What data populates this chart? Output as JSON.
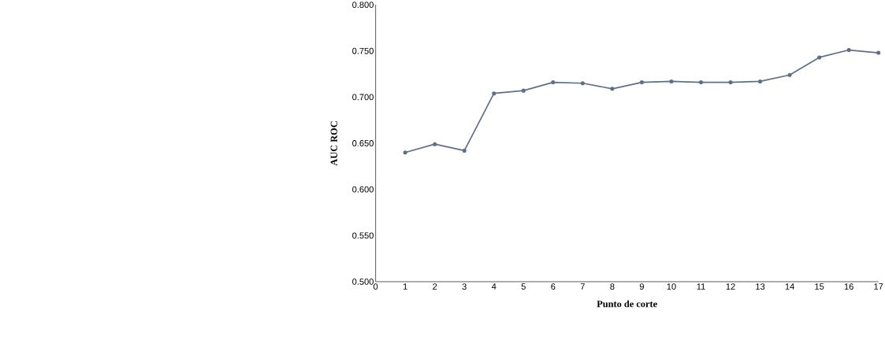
{
  "chart_data": {
    "type": "line",
    "xlabel": "Punto de corte",
    "ylabel": "AUC ROC",
    "x": [
      1,
      2,
      3,
      4,
      5,
      6,
      7,
      8,
      9,
      10,
      11,
      12,
      13,
      14,
      15,
      16,
      17
    ],
    "series": [
      {
        "color": "#5e7088",
        "values": [
          0.64,
          0.649,
          0.642,
          0.704,
          0.707,
          0.716,
          0.715,
          0.709,
          0.716,
          0.717,
          0.716,
          0.716,
          0.717,
          0.724,
          0.743,
          0.751,
          0.748
        ]
      }
    ],
    "xlim": [
      0,
      17
    ],
    "ylim": [
      0.5,
      0.8
    ],
    "xticks": [
      0,
      1,
      2,
      3,
      4,
      5,
      6,
      7,
      8,
      9,
      10,
      11,
      12,
      13,
      14,
      15,
      16,
      17
    ],
    "yticks": [
      {
        "value": 0.5,
        "label": "0.500"
      },
      {
        "value": 0.55,
        "label": "0.550"
      },
      {
        "value": 0.6,
        "label": "0.600"
      },
      {
        "value": 0.65,
        "label": "0.650"
      },
      {
        "value": 0.7,
        "label": "0.700"
      },
      {
        "value": 0.75,
        "label": "0.750"
      },
      {
        "value": 0.8,
        "label": "0.800"
      }
    ],
    "marker": "circle",
    "line_style": "solid"
  }
}
